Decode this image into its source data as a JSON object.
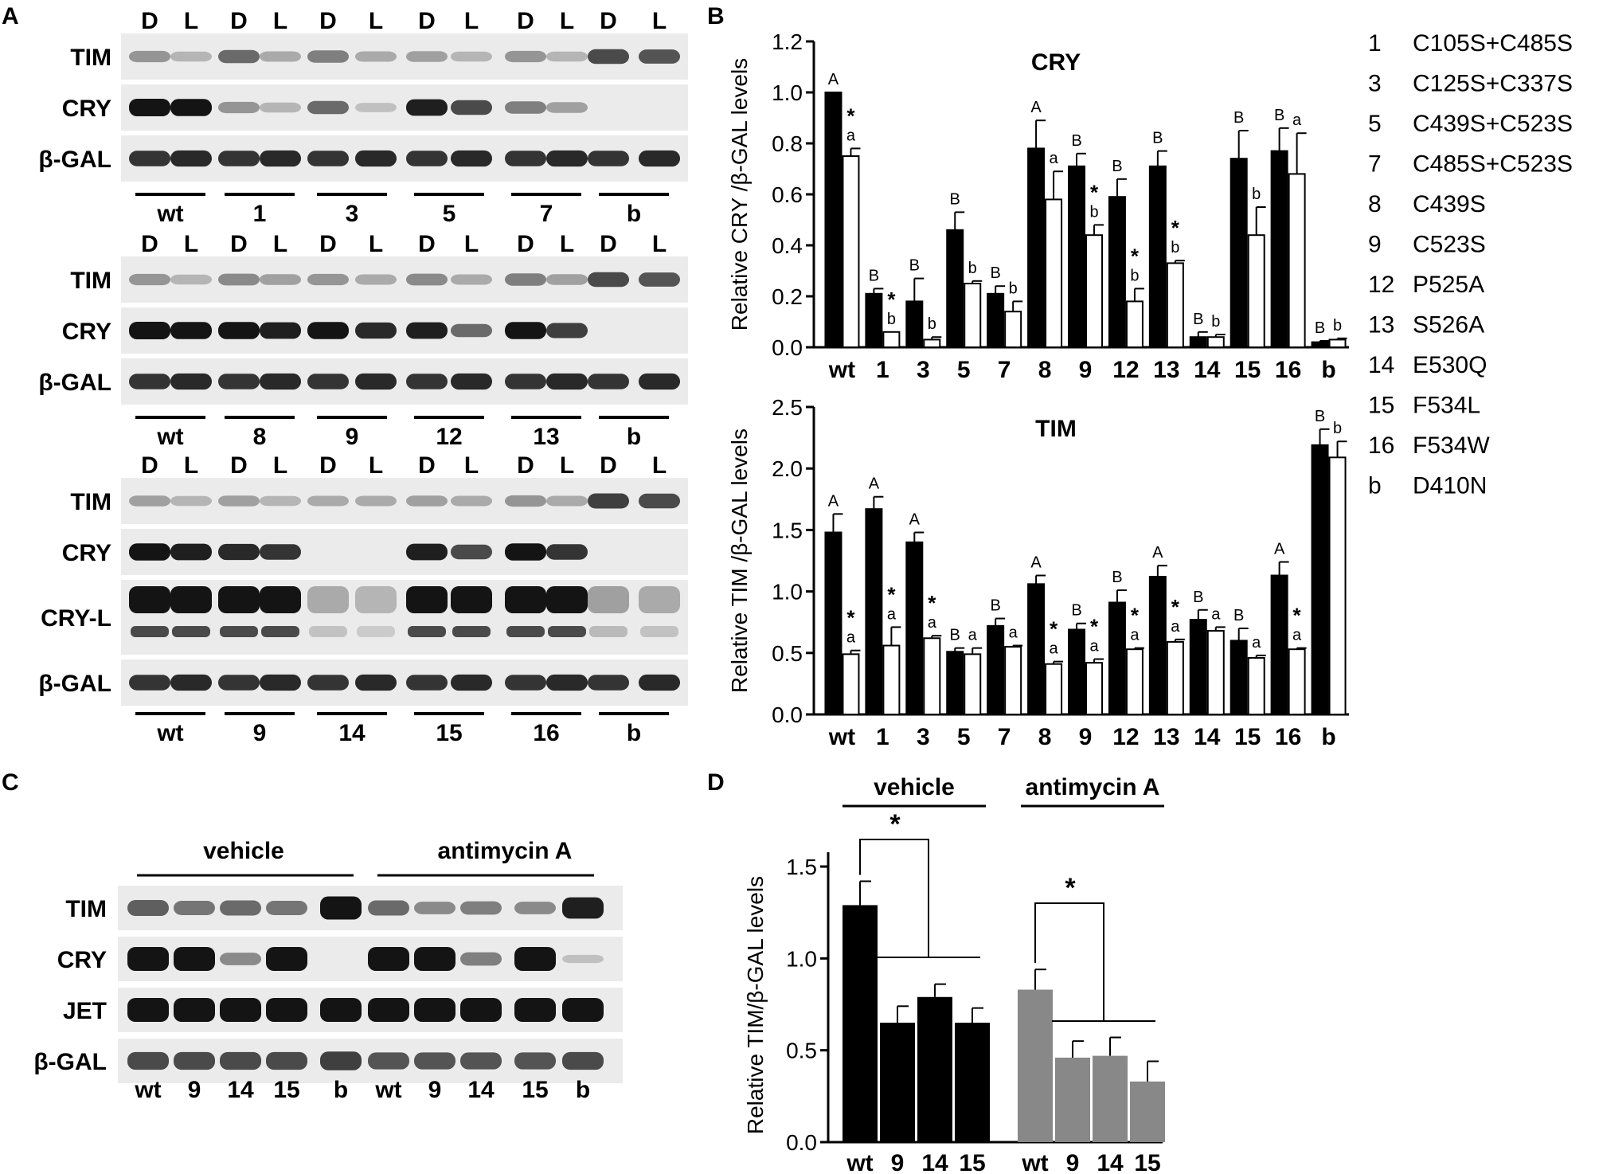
{
  "panels": {
    "A": "A",
    "B": "B",
    "C": "C",
    "D": "D"
  },
  "colors": {
    "dark_bar": "#000000",
    "light_bar": "#ffffff",
    "gray_bar": "#888888",
    "blot_bg": "#ebebeb",
    "band": "#141414"
  },
  "panel_a": {
    "lane_header": [
      "D",
      "L",
      "D",
      "L",
      "D",
      "L",
      "D",
      "L",
      "D",
      "L",
      "D",
      "L"
    ],
    "blots": [
      {
        "rows": [
          "TIM",
          "CRY",
          "β-GAL"
        ],
        "groups": [
          "wt",
          "1",
          "3",
          "5",
          "7",
          "b"
        ],
        "intensity": [
          [
            0.35,
            0.2,
            0.55,
            0.25,
            0.45,
            0.25,
            0.3,
            0.2,
            0.35,
            0.2,
            0.7,
            0.65
          ],
          [
            1.0,
            0.95,
            0.35,
            0.2,
            0.55,
            0.15,
            0.9,
            0.7,
            0.45,
            0.3,
            0.05,
            0.05
          ],
          [
            0.8,
            0.85,
            0.8,
            0.85,
            0.8,
            0.85,
            0.8,
            0.85,
            0.8,
            0.85,
            0.8,
            0.85
          ]
        ]
      },
      {
        "rows": [
          "TIM",
          "CRY",
          "β-GAL"
        ],
        "groups": [
          "wt",
          "8",
          "9",
          "12",
          "13",
          "b"
        ],
        "intensity": [
          [
            0.35,
            0.2,
            0.4,
            0.3,
            0.35,
            0.25,
            0.4,
            0.25,
            0.45,
            0.3,
            0.7,
            0.65
          ],
          [
            1.0,
            0.95,
            0.95,
            0.9,
            0.95,
            0.85,
            0.9,
            0.55,
            0.95,
            0.75,
            0.05,
            0.05
          ],
          [
            0.8,
            0.85,
            0.8,
            0.85,
            0.8,
            0.85,
            0.8,
            0.85,
            0.8,
            0.85,
            0.8,
            0.85
          ]
        ]
      },
      {
        "rows": [
          "TIM",
          "CRY",
          "CRY-L",
          "β-GAL"
        ],
        "groups": [
          "wt",
          "9",
          "14",
          "15",
          "16",
          "b"
        ],
        "intensity": [
          [
            0.3,
            0.2,
            0.3,
            0.2,
            0.25,
            0.25,
            0.3,
            0.25,
            0.35,
            0.25,
            0.75,
            0.7
          ],
          [
            0.95,
            0.9,
            0.85,
            0.8,
            0.05,
            0.05,
            0.9,
            0.7,
            0.95,
            0.8,
            0.05,
            0.05
          ],
          [
            1.0,
            1.0,
            1.0,
            1.0,
            0.25,
            0.2,
            1.0,
            1.0,
            1.0,
            1.0,
            0.3,
            0.25
          ],
          [
            0.8,
            0.85,
            0.8,
            0.85,
            0.8,
            0.85,
            0.8,
            0.85,
            0.8,
            0.85,
            0.8,
            0.85
          ]
        ]
      }
    ]
  },
  "panel_c": {
    "headers": [
      "vehicle",
      "antimycin A"
    ],
    "rows": [
      "TIM",
      "CRY",
      "JET",
      "β-GAL"
    ],
    "lanes": [
      "wt",
      "9",
      "14",
      "15",
      "b",
      "wt",
      "9",
      "14",
      "15",
      "b"
    ],
    "intensity": [
      [
        0.55,
        0.45,
        0.5,
        0.45,
        0.95,
        0.5,
        0.35,
        0.4,
        0.35,
        0.85
      ],
      [
        1.0,
        1.0,
        0.35,
        1.0,
        0.05,
        1.0,
        1.0,
        0.4,
        1.0,
        0.1
      ],
      [
        1.0,
        1.0,
        1.0,
        1.0,
        1.0,
        1.0,
        1.0,
        1.0,
        1.0,
        1.0
      ],
      [
        0.65,
        0.65,
        0.65,
        0.65,
        0.7,
        0.6,
        0.6,
        0.6,
        0.6,
        0.65
      ]
    ]
  },
  "legend": [
    {
      "num": "1",
      "label": "C105S+C485S"
    },
    {
      "num": "3",
      "label": "C125S+C337S"
    },
    {
      "num": "5",
      "label": "C439S+C523S"
    },
    {
      "num": "7",
      "label": "C485S+C523S"
    },
    {
      "num": "8",
      "label": "C439S"
    },
    {
      "num": "9",
      "label": "C523S"
    },
    {
      "num": "12",
      "label": "P525A"
    },
    {
      "num": "13",
      "label": "S526A"
    },
    {
      "num": "14",
      "label": "E530Q"
    },
    {
      "num": "15",
      "label": "F534L"
    },
    {
      "num": "16",
      "label": "F534W"
    },
    {
      "num": "b",
      "label": "D410N"
    }
  ],
  "chart_data": [
    {
      "type": "bar",
      "title": "CRY",
      "ylabel": "Relative CRY /β-GAL levels",
      "ylim": [
        0,
        1.2
      ],
      "yticks": [
        "0.0",
        "0.2",
        "0.4",
        "0.6",
        "0.8",
        "1.0",
        "1.2"
      ],
      "categories": [
        "wt",
        "1",
        "3",
        "5",
        "7",
        "8",
        "9",
        "12",
        "13",
        "14",
        "15",
        "16",
        "b"
      ],
      "series": [
        {
          "values": [
            1.0,
            0.21,
            0.18,
            0.46,
            0.21,
            0.78,
            0.71,
            0.59,
            0.71,
            0.04,
            0.74,
            0.77,
            0.02
          ],
          "errors": [
            0.0,
            0.02,
            0.09,
            0.07,
            0.03,
            0.11,
            0.05,
            0.07,
            0.06,
            0.02,
            0.11,
            0.09,
            0.005
          ],
          "labels": [
            "A",
            "B",
            "B",
            "B",
            "B",
            "A",
            "B",
            "B",
            "B",
            "B",
            "B",
            "B",
            "B"
          ]
        },
        {
          "values": [
            0.75,
            0.06,
            0.03,
            0.25,
            0.14,
            0.58,
            0.44,
            0.18,
            0.33,
            0.04,
            0.44,
            0.68,
            0.03
          ],
          "errors": [
            0.03,
            0.0,
            0.01,
            0.01,
            0.04,
            0.11,
            0.04,
            0.05,
            0.01,
            0.01,
            0.11,
            0.16,
            0.005
          ],
          "labels": [
            "a",
            "b",
            "b",
            "b",
            "b",
            "a",
            "b",
            "b",
            "b",
            "b",
            "b",
            "a",
            "b"
          ],
          "stars": [
            true,
            true,
            false,
            false,
            false,
            false,
            true,
            true,
            true,
            false,
            false,
            false,
            false
          ]
        }
      ]
    },
    {
      "type": "bar",
      "title": "TIM",
      "ylabel": "Relative TIM /β-GAL levels",
      "ylim": [
        0,
        2.5
      ],
      "yticks": [
        "0.0",
        "0.5",
        "1.0",
        "1.5",
        "2.0",
        "2.5"
      ],
      "categories": [
        "wt",
        "1",
        "3",
        "5",
        "7",
        "8",
        "9",
        "12",
        "13",
        "14",
        "15",
        "16",
        "b"
      ],
      "series": [
        {
          "values": [
            1.48,
            1.67,
            1.4,
            0.51,
            0.72,
            1.06,
            0.69,
            0.91,
            1.12,
            0.77,
            0.6,
            1.13,
            2.19
          ],
          "errors": [
            0.15,
            0.1,
            0.08,
            0.03,
            0.06,
            0.07,
            0.05,
            0.1,
            0.09,
            0.08,
            0.1,
            0.11,
            0.13
          ],
          "labels": [
            "A",
            "A",
            "A",
            "B",
            "B",
            "A",
            "B",
            "B",
            "A",
            "B",
            "B",
            "A",
            "B"
          ]
        },
        {
          "values": [
            0.49,
            0.56,
            0.62,
            0.49,
            0.55,
            0.41,
            0.42,
            0.53,
            0.59,
            0.68,
            0.46,
            0.53,
            2.09
          ],
          "errors": [
            0.03,
            0.15,
            0.02,
            0.05,
            0.01,
            0.02,
            0.03,
            0.01,
            0.02,
            0.03,
            0.02,
            0.01,
            0.13
          ],
          "labels": [
            "a",
            "a",
            "a",
            "a",
            "a",
            "a",
            "a",
            "a",
            "a",
            "a",
            "a",
            "a",
            "b"
          ],
          "stars": [
            true,
            true,
            true,
            false,
            false,
            true,
            true,
            true,
            true,
            false,
            false,
            true,
            false
          ]
        }
      ]
    },
    {
      "type": "bar",
      "ylabel": "Relative TIM/β-GAL levels",
      "ylim": [
        0,
        1.5
      ],
      "yticks": [
        "0.0",
        "0.5",
        "1.0",
        "1.5"
      ],
      "groups": [
        {
          "name": "vehicle",
          "categories": [
            "wt",
            "9",
            "14",
            "15"
          ],
          "values": [
            1.29,
            0.65,
            0.79,
            0.65
          ],
          "errors": [
            0.13,
            0.09,
            0.07,
            0.08
          ]
        },
        {
          "name": "antimycin A",
          "categories": [
            "wt",
            "9",
            "14",
            "15"
          ],
          "values": [
            0.83,
            0.46,
            0.47,
            0.33
          ],
          "errors": [
            0.11,
            0.09,
            0.1,
            0.11
          ]
        }
      ],
      "significance": [
        "*",
        "*"
      ]
    }
  ]
}
